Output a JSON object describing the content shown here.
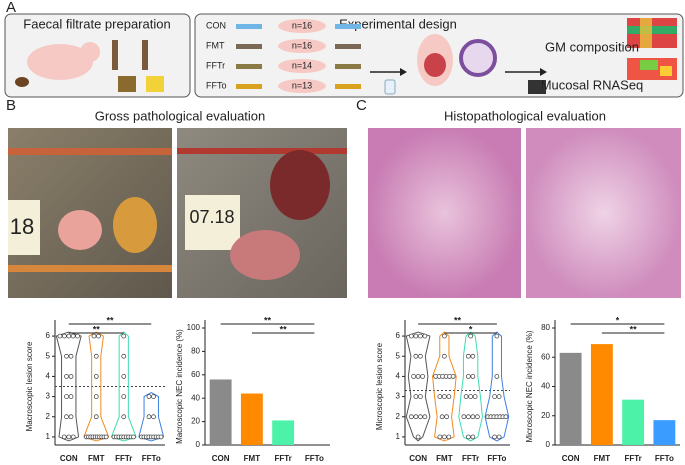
{
  "panel_a": {
    "letter": "A",
    "left_title": "Faecal filtrate preparation",
    "groups": [
      {
        "name": "CON",
        "n": "n=16"
      },
      {
        "name": "FMT",
        "n": "n=16"
      },
      {
        "name": "FFTr",
        "n": "n=14"
      },
      {
        "name": "FFTo",
        "n": "n=13"
      }
    ],
    "design_title": "Experimental design",
    "out1": "GM composition",
    "out2": "Mucosal RNASeq"
  },
  "panel_b": {
    "letter": "B",
    "title": "Gross pathological evaluation",
    "photo1_label": "18",
    "photo2_label": "07.18"
  },
  "panel_c": {
    "letter": "C",
    "title": "Histopathological evaluation"
  },
  "chart_data": [
    {
      "type": "strip",
      "ylabel": "Macroscopic lesion score",
      "categories": [
        "CON",
        "FMT",
        "FFTr",
        "FFTo"
      ],
      "colors": [
        "#555555",
        "#f28a1a",
        "#3ddbb0",
        "#3d7fe0"
      ],
      "values": [
        [
          6,
          6,
          6,
          6,
          6,
          5,
          5,
          4,
          4,
          3,
          3,
          2,
          2,
          1,
          1,
          1
        ],
        [
          6,
          6,
          5,
          4,
          3,
          2,
          1,
          1,
          1,
          1,
          1,
          1,
          1,
          1,
          1,
          1
        ],
        [
          6,
          5,
          4,
          3,
          2,
          1,
          1,
          1,
          1,
          1,
          1,
          1,
          1,
          1
        ],
        [
          3,
          3,
          2,
          2,
          1,
          1,
          1,
          1,
          1,
          1,
          1,
          1,
          1
        ]
      ],
      "ylim": [
        0.6,
        6.4
      ],
      "yticks": [
        1,
        2,
        3,
        4,
        5,
        6
      ],
      "reference_line": 3.5,
      "annotations": [
        {
          "text": "**",
          "from": 0,
          "to": 3
        },
        {
          "text": "**",
          "from": 0,
          "to": 2
        }
      ]
    },
    {
      "type": "bar",
      "ylabel": "Macroscopic NEC incidence (%)",
      "categories": [
        "CON",
        "FMT",
        "FFTr",
        "FFTo"
      ],
      "colors": [
        "#8a8a8a",
        "#ff8a00",
        "#4cf2a8",
        "#3b9cff"
      ],
      "values": [
        56,
        44,
        21,
        0
      ],
      "ylim": [
        0,
        100
      ],
      "yticks": [
        0,
        20,
        40,
        60,
        80,
        100
      ],
      "annotations": [
        {
          "text": "**",
          "from": 0,
          "to": 3
        },
        {
          "text": "**",
          "from": 1,
          "to": 3
        }
      ]
    },
    {
      "type": "strip",
      "ylabel": "Microscopic lesion score",
      "categories": [
        "CON",
        "FMT",
        "FFTr",
        "FFTo"
      ],
      "colors": [
        "#555555",
        "#f28a1a",
        "#3ddbb0",
        "#3d7fe0"
      ],
      "values": [
        [
          6,
          6,
          6,
          6,
          5,
          5,
          4,
          4,
          4,
          3,
          3,
          2,
          2,
          2,
          2,
          1
        ],
        [
          6,
          5,
          4,
          4,
          4,
          4,
          4,
          4,
          3,
          3,
          3,
          2,
          2,
          1,
          1,
          1
        ],
        [
          6,
          5,
          5,
          4,
          4,
          3,
          3,
          3,
          2,
          2,
          2,
          2,
          1,
          1
        ],
        [
          6,
          4,
          3,
          3,
          2,
          2,
          2,
          2,
          2,
          2,
          2,
          1,
          1
        ]
      ],
      "ylim": [
        0.6,
        6.4
      ],
      "yticks": [
        1,
        2,
        3,
        4,
        5,
        6
      ],
      "reference_line": 3.3,
      "annotations": [
        {
          "text": "**",
          "from": 0,
          "to": 3
        },
        {
          "text": "*",
          "from": 1,
          "to": 3
        }
      ]
    },
    {
      "type": "bar",
      "ylabel": "Microscopic NEC incidence (%)",
      "categories": [
        "CON",
        "FMT",
        "FFTr",
        "FFTo"
      ],
      "colors": [
        "#8a8a8a",
        "#ff8a00",
        "#4cf2a8",
        "#3b9cff"
      ],
      "values": [
        63,
        69,
        31,
        17
      ],
      "ylim": [
        0,
        80
      ],
      "yticks": [
        0,
        20,
        40,
        60,
        80
      ],
      "annotations": [
        {
          "text": "*",
          "from": 0,
          "to": 3
        },
        {
          "text": "**",
          "from": 1,
          "to": 3
        }
      ]
    }
  ]
}
